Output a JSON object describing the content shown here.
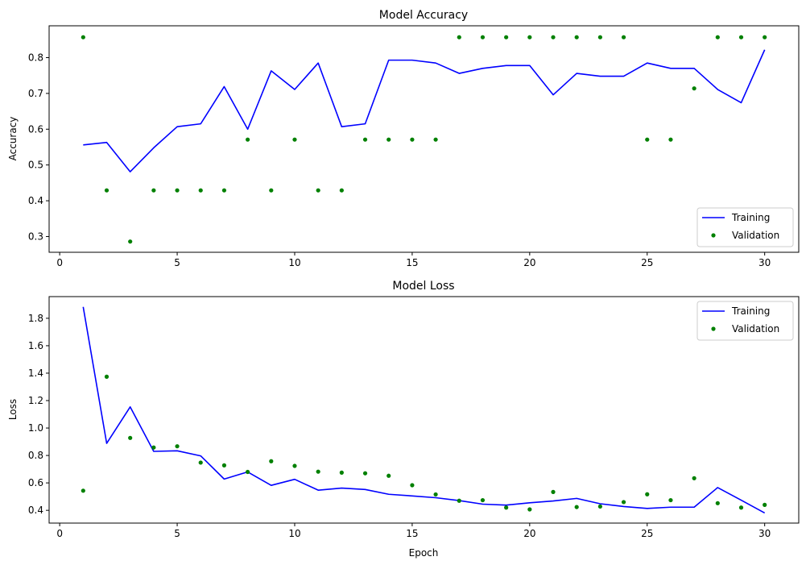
{
  "chart_data": [
    {
      "type": "line",
      "title": "Model Accuracy",
      "xlabel": "",
      "ylabel": "Accuracy",
      "xlim": [
        -0.45,
        31.45
      ],
      "ylim": [
        0.256,
        0.889
      ],
      "xticks": [
        0,
        5,
        10,
        15,
        20,
        25,
        30
      ],
      "yticks": [
        0.3,
        0.4,
        0.5,
        0.6,
        0.7,
        0.8
      ],
      "xtick_labels": [
        "0",
        "5",
        "10",
        "15",
        "20",
        "25",
        "30"
      ],
      "ytick_labels": [
        "0.3",
        "0.4",
        "0.5",
        "0.6",
        "0.7",
        "0.8"
      ],
      "grid": false,
      "legend_position": "lower right",
      "x": [
        1,
        2,
        3,
        4,
        5,
        6,
        7,
        8,
        9,
        10,
        11,
        12,
        13,
        14,
        15,
        16,
        17,
        18,
        19,
        20,
        21,
        22,
        23,
        24,
        25,
        26,
        27,
        28,
        29,
        30
      ],
      "series": [
        {
          "name": "Training",
          "kind": "line",
          "color": "#0000ff",
          "values": [
            0.556,
            0.563,
            0.481,
            0.548,
            0.607,
            0.615,
            0.719,
            0.6,
            0.763,
            0.711,
            0.785,
            0.607,
            0.615,
            0.793,
            0.793,
            0.785,
            0.756,
            0.77,
            0.778,
            0.778,
            0.696,
            0.756,
            0.748,
            0.748,
            0.785,
            0.77,
            0.77,
            0.711,
            0.674,
            0.822
          ]
        },
        {
          "name": "Validation",
          "kind": "scatter",
          "color": "#008000",
          "values": [
            0.857,
            0.429,
            0.286,
            0.429,
            0.429,
            0.429,
            0.429,
            0.571,
            0.429,
            0.571,
            0.429,
            0.429,
            0.571,
            0.571,
            0.571,
            0.571,
            0.857,
            0.857,
            0.857,
            0.857,
            0.857,
            0.857,
            0.857,
            0.857,
            0.571,
            0.571,
            0.714,
            0.857,
            0.857,
            0.857
          ]
        }
      ]
    },
    {
      "type": "line",
      "title": "Model Loss",
      "xlabel": "Epoch",
      "ylabel": "Loss",
      "xlim": [
        -0.45,
        31.45
      ],
      "ylim": [
        0.307,
        1.958
      ],
      "xticks": [
        0,
        5,
        10,
        15,
        20,
        25,
        30
      ],
      "yticks": [
        0.4,
        0.6,
        0.8,
        1.0,
        1.2,
        1.4,
        1.6,
        1.8
      ],
      "xtick_labels": [
        "0",
        "5",
        "10",
        "15",
        "20",
        "25",
        "30"
      ],
      "ytick_labels": [
        "0.4",
        "0.6",
        "0.8",
        "1.0",
        "1.2",
        "1.4",
        "1.6",
        "1.8"
      ],
      "grid": false,
      "legend_position": "upper right",
      "x": [
        1,
        2,
        3,
        4,
        5,
        6,
        7,
        8,
        9,
        10,
        11,
        12,
        13,
        14,
        15,
        16,
        17,
        18,
        19,
        20,
        21,
        22,
        23,
        24,
        25,
        26,
        27,
        28,
        29,
        30
      ],
      "series": [
        {
          "name": "Training",
          "kind": "line",
          "color": "#0000ff",
          "values": [
            1.883,
            0.888,
            1.154,
            0.83,
            0.834,
            0.797,
            0.628,
            0.68,
            0.582,
            0.626,
            0.547,
            0.562,
            0.552,
            0.517,
            0.505,
            0.492,
            0.471,
            0.445,
            0.438,
            0.455,
            0.468,
            0.487,
            0.448,
            0.428,
            0.414,
            0.423,
            0.423,
            0.566,
            0.474,
            0.381
          ]
        },
        {
          "name": "Validation",
          "kind": "scatter",
          "color": "#008000",
          "values": [
            0.543,
            1.374,
            0.928,
            0.858,
            0.867,
            0.748,
            0.728,
            0.68,
            0.758,
            0.724,
            0.682,
            0.675,
            0.67,
            0.652,
            0.583,
            0.516,
            0.47,
            0.474,
            0.42,
            0.407,
            0.534,
            0.424,
            0.428,
            0.46,
            0.517,
            0.474,
            0.634,
            0.452,
            0.42,
            0.44
          ]
        }
      ]
    }
  ]
}
